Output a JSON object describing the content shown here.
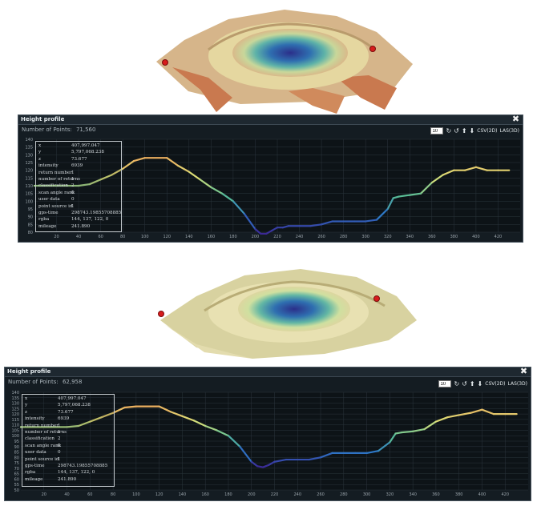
{
  "colors": {
    "accent": "#d71c1c",
    "panel": "#141c22",
    "grid": "#2b353d"
  },
  "panels": [
    {
      "title": "Height profile",
      "points_label": "Number of Points:",
      "points_value": "71,560",
      "width_value": "10",
      "csv_label": "CSV(2D)",
      "las_label": "LAS(3D)",
      "y_ticks": [
        "140",
        "135",
        "130",
        "125",
        "120",
        "115",
        "110",
        "105",
        "100",
        "95",
        "90",
        "85",
        "80"
      ],
      "x_ticks": [
        "20",
        "40",
        "60",
        "80",
        "100",
        "120",
        "140",
        "160",
        "180",
        "200",
        "220",
        "240",
        "260",
        "280",
        "300",
        "320",
        "340",
        "360",
        "380",
        "400",
        "420"
      ],
      "info": [
        {
          "k": "x",
          "v": "407,997.047"
        },
        {
          "k": "y",
          "v": "5,797,068.238"
        },
        {
          "k": "z",
          "v": "73.677"
        },
        {
          "k": "intensity",
          "v": "6939"
        },
        {
          "k": "return number",
          "v": "1"
        },
        {
          "k": "number of returns",
          "v": "1"
        },
        {
          "k": "classification",
          "v": "2"
        },
        {
          "k": "scan angle rank",
          "v": "0"
        },
        {
          "k": "user data",
          "v": "0"
        },
        {
          "k": "point source id",
          "v": "1"
        },
        {
          "k": "gps-time",
          "v": "298743.19855708885"
        },
        {
          "k": "rgba",
          "v": "144, 137, 122, 0"
        },
        {
          "k": "mileage",
          "v": "241.890"
        }
      ],
      "chart_data": {
        "type": "line",
        "x": [
          0,
          20,
          40,
          50,
          60,
          70,
          80,
          90,
          100,
          120,
          130,
          140,
          150,
          160,
          170,
          180,
          190,
          200,
          205,
          210,
          215,
          220,
          225,
          230,
          240,
          250,
          260,
          270,
          280,
          290,
          300,
          310,
          320,
          325,
          330,
          340,
          350,
          360,
          370,
          380,
          390,
          400,
          410,
          420,
          430
        ],
        "y": [
          110,
          110,
          110,
          111,
          114,
          117,
          121,
          126,
          128,
          128,
          123,
          119,
          114,
          109,
          105,
          100,
          92,
          82,
          79,
          79,
          81,
          83,
          83,
          84,
          84,
          84,
          85,
          87,
          87,
          87,
          87,
          88,
          95,
          102,
          103,
          104,
          105,
          112,
          117,
          120,
          120,
          122,
          120,
          120,
          120
        ]
      }
    },
    {
      "title": "Height profile",
      "points_label": "Number of Points:",
      "points_value": "62,958",
      "width_value": "10",
      "csv_label": "CSV(2D)",
      "las_label": "LAS(3D)",
      "y_ticks": [
        "140",
        "135",
        "130",
        "125",
        "120",
        "115",
        "110",
        "105",
        "100",
        "95",
        "90",
        "85",
        "80",
        "75",
        "70",
        "65",
        "60",
        "55",
        "50"
      ],
      "x_ticks": [
        "20",
        "40",
        "60",
        "80",
        "100",
        "120",
        "140",
        "160",
        "180",
        "200",
        "220",
        "240",
        "260",
        "280",
        "300",
        "320",
        "340",
        "360",
        "380",
        "400",
        "420"
      ],
      "info": [
        {
          "k": "x",
          "v": "407,997.047"
        },
        {
          "k": "y",
          "v": "5,797,068.238"
        },
        {
          "k": "z",
          "v": "73.677"
        },
        {
          "k": "intensity",
          "v": "6939"
        },
        {
          "k": "return number",
          "v": "1"
        },
        {
          "k": "number of returns",
          "v": "1"
        },
        {
          "k": "classification",
          "v": "2"
        },
        {
          "k": "scan angle rank",
          "v": "0"
        },
        {
          "k": "user data",
          "v": "0"
        },
        {
          "k": "point source id",
          "v": "1"
        },
        {
          "k": "gps-time",
          "v": "298743.19855708885"
        },
        {
          "k": "rgba",
          "v": "144, 137, 122, 0"
        },
        {
          "k": "mileage",
          "v": "241.890"
        }
      ],
      "chart_data": {
        "type": "line",
        "x": [
          0,
          20,
          40,
          50,
          60,
          70,
          80,
          90,
          100,
          120,
          130,
          140,
          150,
          160,
          170,
          180,
          190,
          200,
          205,
          210,
          215,
          220,
          225,
          230,
          240,
          250,
          260,
          270,
          280,
          290,
          300,
          310,
          320,
          325,
          330,
          340,
          350,
          360,
          370,
          380,
          390,
          400,
          410,
          420,
          430
        ],
        "y": [
          108,
          108,
          108,
          109,
          113,
          117,
          121,
          126,
          127,
          127,
          122,
          118,
          114,
          109,
          105,
          100,
          90,
          76,
          72,
          71,
          73,
          76,
          77,
          78,
          78,
          78,
          80,
          84,
          84,
          84,
          84,
          86,
          94,
          102,
          103,
          104,
          106,
          113,
          117,
          119,
          121,
          124,
          120,
          120,
          120
        ]
      }
    }
  ]
}
